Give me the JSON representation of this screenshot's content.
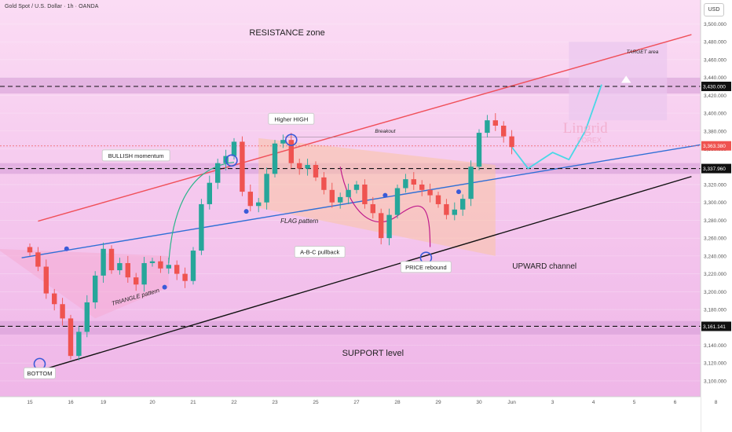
{
  "header": {
    "title": "Gold Spot / U.S. Dollar · 1h · OANDA",
    "currency": "USD"
  },
  "colors": {
    "candle_up": "#26a69a",
    "candle_down": "#ef5350",
    "channel_top": "#f0505a",
    "channel_bottom": "#111111",
    "trend_line": "#2f6fd6",
    "marker": "#3a5ad8",
    "projection": "#49d7e6",
    "zone": "#d49ad6"
  },
  "annotations": {
    "resistance_zone": "RESISTANCE zone",
    "support_level": "SUPPORT level",
    "target_area": "TARGET area",
    "higher_high": "Higher HIGH",
    "breakout": "Breakout",
    "bullish_momentum": "BULLISH momentum",
    "flag_pattern": "FLAG pattern",
    "abc_pullback": "A-B-C pullback",
    "price_rebound": "PRICE rebound",
    "upward_channel": "UPWARD channel",
    "triangle_pattern": "TRIANGLE pattern",
    "bottom": "BOTTOM",
    "watermark_brand": "Lingrid",
    "watermark_sub": "FOREX"
  },
  "chart_data": {
    "type": "candlestick",
    "title": "Gold Spot / U.S. Dollar · 1h · OANDA",
    "y_unit": "USD",
    "ylim": [
      3085,
      3518
    ],
    "y_ticks": [
      3500,
      3480,
      3460,
      3440,
      3420,
      3400,
      3380,
      3360,
      3340,
      3320,
      3300,
      3280,
      3260,
      3240,
      3220,
      3200,
      3180,
      3160,
      3140,
      3120,
      3100
    ],
    "y_tick_labels": [
      "3,500.000",
      "3,480.000",
      "3,460.000",
      "3,440.000",
      "3,420.000",
      "3,400.000",
      "3,380.000",
      "3,360.000",
      "3,340.000",
      "3,320.000",
      "3,300.000",
      "3,280.000",
      "3,260.000",
      "3,240.000",
      "3,220.000",
      "3,200.000",
      "3,180.000",
      "3,160.000",
      "3,140.000",
      "3,120.000",
      "3,100.000"
    ],
    "x_ticks": [
      "15",
      "16",
      "19",
      "20",
      "21",
      "22",
      "23",
      "25",
      "27",
      "28",
      "29",
      "30",
      "Jun",
      "3",
      "4",
      "5",
      "6",
      "8"
    ],
    "x_tick_index": [
      0,
      5,
      9,
      15,
      20,
      25,
      30,
      35,
      40,
      45,
      50,
      55,
      59,
      64,
      69,
      74,
      79,
      84
    ],
    "price_levels": [
      {
        "value": 3430.0,
        "label": "3,430.000",
        "style": "dashed"
      },
      {
        "value": 3363.38,
        "label": "3,363.380",
        "style": "current"
      },
      {
        "value": 3337.96,
        "label": "3,337.960",
        "style": "dashed"
      },
      {
        "value": 3161.141,
        "label": "3,161.141",
        "style": "dashed"
      }
    ],
    "zones": [
      {
        "name": "resistance",
        "from": 3422,
        "to": 3440
      },
      {
        "name": "middle",
        "from": 3332,
        "to": 3344
      },
      {
        "name": "support",
        "from": 3152,
        "to": 3167
      }
    ],
    "trendlines": [
      {
        "name": "channel-top",
        "from": {
          "i": 1,
          "price": 3279
        },
        "to": {
          "i": 81,
          "price": 3488
        }
      },
      {
        "name": "channel-bottom",
        "from": {
          "i": 1,
          "price": 3111
        },
        "to": {
          "i": 81,
          "price": 3329
        }
      },
      {
        "name": "trend-line",
        "from": {
          "i": -1,
          "price": 3238
        },
        "to": {
          "i": 87,
          "price": 3372
        }
      }
    ],
    "closes": [
      3244,
      3228,
      3198,
      3186,
      3170,
      3128,
      3155,
      3188,
      3218,
      3248,
      3224,
      3232,
      3216,
      3208,
      3232,
      3234,
      3226,
      3230,
      3220,
      3212,
      3246,
      3298,
      3322,
      3344,
      3352,
      3368,
      3312,
      3296,
      3300,
      3332,
      3366,
      3370,
      3344,
      3338,
      3342,
      3328,
      3314,
      3300,
      3306,
      3314,
      3320,
      3298,
      3288,
      3260,
      3286,
      3316,
      3326,
      3320,
      3314,
      3308,
      3298,
      3286,
      3292,
      3304,
      3340,
      3378,
      3392,
      3386,
      3374,
      3362
    ],
    "projection": [
      [
        59,
        3362
      ],
      [
        61,
        3338
      ],
      [
        64,
        3356
      ],
      [
        66,
        3348
      ],
      [
        68,
        3380
      ],
      [
        70,
        3432
      ]
    ]
  }
}
